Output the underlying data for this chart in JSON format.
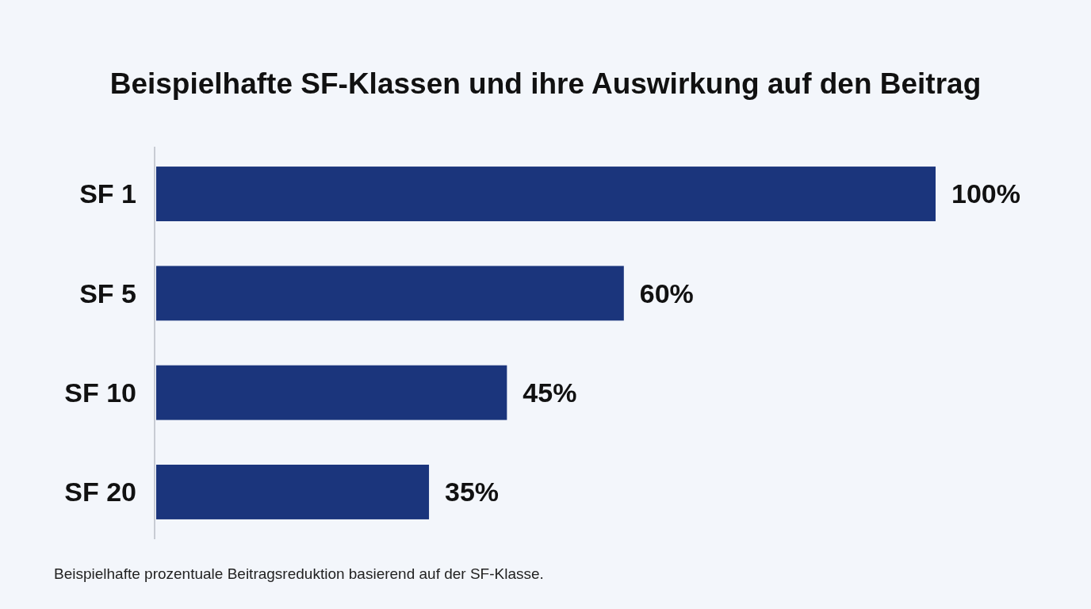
{
  "chart_data": {
    "type": "bar",
    "orientation": "horizontal",
    "title": "Beispielhafte SF-Klassen und ihre Auswirkung auf den Beitrag",
    "categories": [
      "SF 1",
      "SF 5",
      "SF 10",
      "SF 20"
    ],
    "values": [
      100,
      60,
      45,
      35
    ],
    "value_labels": [
      "100%",
      "60%",
      "45%",
      "35%"
    ],
    "color": "#1b357c",
    "annotations": [
      "Beispielhafte prozentuale Beitragsreduktion basierend auf der SF-Klasse."
    ]
  }
}
